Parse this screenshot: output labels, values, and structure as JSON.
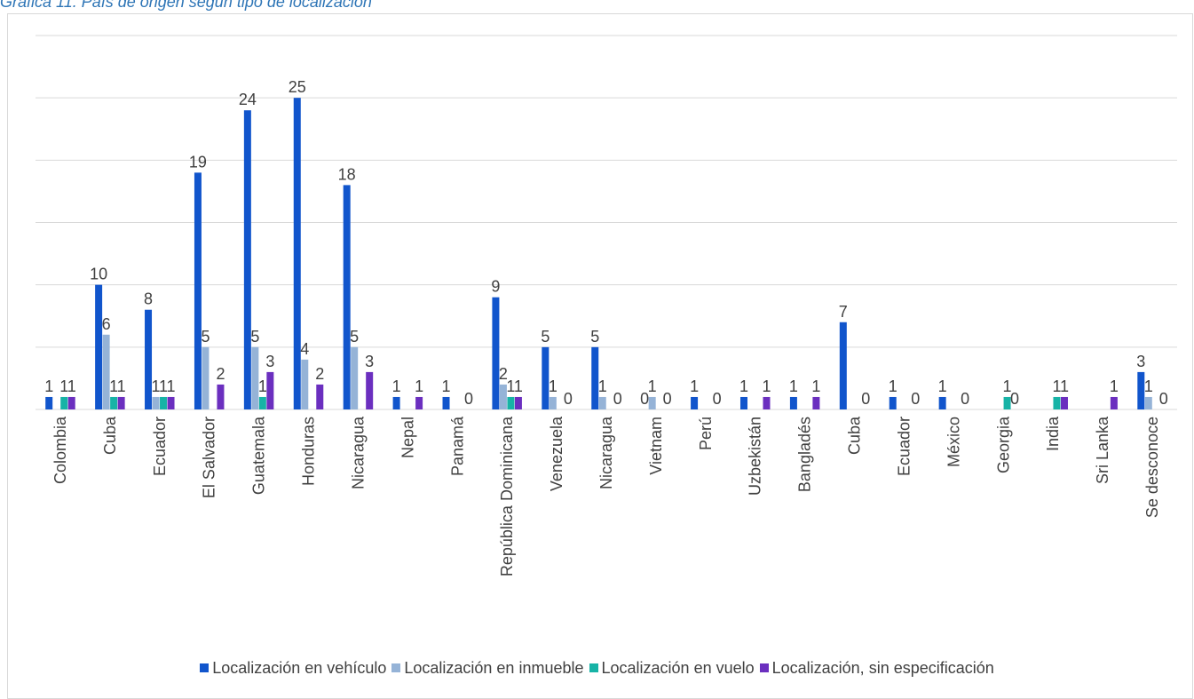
{
  "caption": "Gráfica 11. País de origen según tipo de localización",
  "colors": {
    "vehiculo": "#1155cc",
    "inmueble": "#95b3d7",
    "vuelo": "#17b3a6",
    "sin_especificacion": "#6b2fbf",
    "grid": "#d9d9d9",
    "text": "#404040"
  },
  "chart_data": {
    "type": "bar",
    "title": "",
    "xlabel": "",
    "ylabel": "",
    "ylim": [
      0,
      30
    ],
    "grid": true,
    "legend_position": "bottom",
    "categories": [
      "Colombia",
      "Cuba",
      "Ecuador",
      "El Salvador",
      "Guatemala",
      "Honduras",
      "Nicaragua",
      "Nepal",
      "Panamá",
      "República Dominicana",
      "Venezuela",
      "Nicaragua",
      "Vietnam",
      "Perú",
      "Uzbekistán",
      "Bangladés",
      "Cuba",
      "Ecuador",
      "México",
      "Georgia",
      "India",
      "Sri Lanka",
      "Se desconoce"
    ],
    "series": [
      {
        "name": "Localización en vehículo",
        "color_key": "vehiculo",
        "values": [
          1,
          10,
          8,
          19,
          24,
          25,
          18,
          1,
          1,
          9,
          5,
          5,
          0,
          1,
          1,
          1,
          7,
          1,
          1,
          null,
          null,
          null,
          3
        ]
      },
      {
        "name": "Localización en inmueble",
        "color_key": "inmueble",
        "values": [
          null,
          6,
          1,
          5,
          5,
          4,
          5,
          null,
          null,
          2,
          1,
          1,
          1,
          null,
          null,
          null,
          null,
          null,
          null,
          null,
          null,
          null,
          1
        ]
      },
      {
        "name": "Localización en vuelo",
        "color_key": "vuelo",
        "values": [
          1,
          1,
          1,
          null,
          1,
          null,
          null,
          null,
          null,
          1,
          null,
          null,
          null,
          null,
          null,
          null,
          null,
          null,
          null,
          1,
          1,
          null,
          null
        ]
      },
      {
        "name": "Localización, sin especificación",
        "color_key": "sin_especificacion",
        "values": [
          1,
          1,
          1,
          2,
          3,
          2,
          3,
          1,
          0,
          1,
          0,
          0,
          0,
          0,
          1,
          1,
          0,
          0,
          0,
          0,
          1,
          1,
          0
        ]
      }
    ]
  }
}
